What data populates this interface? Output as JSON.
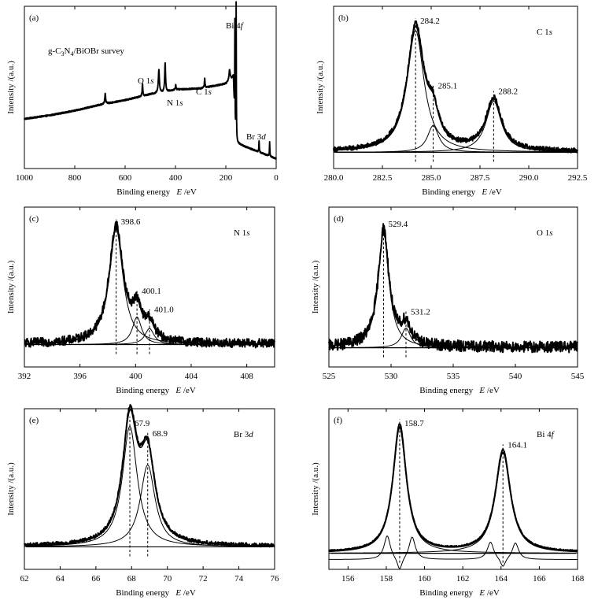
{
  "chart_data": [
    {
      "id": "a",
      "type": "line",
      "panel_label": "(a)",
      "title": "g-C3N4/BiOBr survey",
      "xlabel": "Binding energy",
      "xvar": "E",
      "xunit": "/eV",
      "ylabel": "Intensity /(a.u.)",
      "xlim": [
        1000,
        0
      ],
      "reversed": true,
      "xticks": [
        1000,
        800,
        600,
        400,
        200,
        0
      ],
      "grid": false,
      "annotations": [
        {
          "label": "O 1s",
          "x": 531
        },
        {
          "label": "N 1s",
          "x": 399
        },
        {
          "label": "C 1s",
          "x": 284
        },
        {
          "label": "Bi 4f",
          "x": 159
        },
        {
          "label": "Br 3d",
          "x": 68
        }
      ],
      "baseline": [
        [
          1000,
          0.37
        ],
        [
          900,
          0.4
        ],
        [
          800,
          0.44
        ],
        [
          700,
          0.49
        ],
        [
          600,
          0.53
        ],
        [
          500,
          0.58
        ],
        [
          440,
          0.6
        ],
        [
          400,
          0.62
        ],
        [
          300,
          0.63
        ],
        [
          200,
          0.67
        ],
        [
          170,
          0.72
        ],
        [
          163,
          0.17
        ],
        [
          120,
          0.13
        ],
        [
          60,
          0.08
        ],
        [
          0,
          0.03
        ]
      ],
      "peaks": [
        {
          "x": 679,
          "h": 0.09,
          "w": 4
        },
        {
          "x": 531,
          "h": 0.11,
          "w": 3
        },
        {
          "x": 466,
          "h": 0.2,
          "w": 5
        },
        {
          "x": 441,
          "h": 0.25,
          "w": 4
        },
        {
          "x": 399,
          "h": 0.04,
          "w": 3
        },
        {
          "x": 284,
          "h": 0.08,
          "w": 3
        },
        {
          "x": 185,
          "h": 0.09,
          "w": 6
        },
        {
          "x": 164,
          "h": 0.95,
          "w": 1.6
        },
        {
          "x": 159,
          "h": 1.18,
          "w": 1.6
        },
        {
          "x": 68,
          "h": 0.1,
          "w": 2
        },
        {
          "x": 26,
          "h": 0.12,
          "w": 2
        }
      ]
    },
    {
      "id": "b",
      "type": "line",
      "panel_label": "(b)",
      "element_label": "C 1s",
      "xlabel": "Binding energy",
      "xvar": "E",
      "xunit": "/eV",
      "ylabel": "Intensity /(a.u.)",
      "xlim": [
        280.0,
        292.5
      ],
      "xticks": [
        280.0,
        282.5,
        285.0,
        287.5,
        290.0,
        292.5
      ],
      "xtick_labels": [
        "280.0",
        "282.5",
        "285.0",
        "287.5",
        "290.0",
        "292.5"
      ],
      "grid": false,
      "peak_labels": [
        {
          "label": "284.2",
          "x": 284.2
        },
        {
          "label": "285.1",
          "x": 285.1
        },
        {
          "label": "288.2",
          "x": 288.2
        }
      ],
      "components": [
        {
          "center": 284.2,
          "height": 1.0,
          "fwhm": 1.05
        },
        {
          "center": 285.1,
          "height": 0.22,
          "fwhm": 0.7
        },
        {
          "center": 288.2,
          "height": 0.42,
          "fwhm": 0.95
        }
      ],
      "noise": 0.02
    },
    {
      "id": "c",
      "type": "line",
      "panel_label": "(c)",
      "element_label": "N 1s",
      "xlabel": "Binding energy",
      "xvar": "E",
      "xunit": "/eV",
      "ylabel": "Intensity /(a.u.)",
      "xlim": [
        392,
        410
      ],
      "xticks": [
        392,
        396,
        400,
        404,
        408
      ],
      "grid": false,
      "peak_labels": [
        {
          "label": "398.6",
          "x": 398.6
        },
        {
          "label": "400.1",
          "x": 400.1
        },
        {
          "label": "401.0",
          "x": 401.0
        }
      ],
      "components": [
        {
          "center": 398.6,
          "height": 1.0,
          "fwhm": 1.2
        },
        {
          "center": 400.1,
          "height": 0.24,
          "fwhm": 0.8
        },
        {
          "center": 401.0,
          "height": 0.14,
          "fwhm": 0.8
        }
      ],
      "noise": 0.04
    },
    {
      "id": "d",
      "type": "line",
      "panel_label": "(d)",
      "element_label": "O 1s",
      "xlabel": "Binding energy",
      "xvar": "E",
      "xunit": "/eV",
      "ylabel": "Intensity /(a.u.)",
      "xlim": [
        525,
        545
      ],
      "xticks": [
        525,
        530,
        535,
        540,
        545
      ],
      "grid": false,
      "peak_labels": [
        {
          "label": "529.4",
          "x": 529.4
        },
        {
          "label": "531.2",
          "x": 531.2
        }
      ],
      "components": [
        {
          "center": 529.4,
          "height": 1.0,
          "fwhm": 1.05
        },
        {
          "center": 531.2,
          "height": 0.17,
          "fwhm": 0.9
        }
      ],
      "noise": 0.05
    },
    {
      "id": "e",
      "type": "line",
      "panel_label": "(e)",
      "element_label": "Br 3d",
      "xlabel": "Binding energy",
      "xvar": "E",
      "xunit": "/eV",
      "ylabel": "Intensity /(a.u.)",
      "xlim": [
        62,
        76
      ],
      "xticks": [
        62,
        64,
        66,
        68,
        70,
        72,
        74,
        76
      ],
      "grid": false,
      "peak_labels": [
        {
          "label": "67.9",
          "x": 67.9
        },
        {
          "label": "68.9",
          "x": 68.9
        }
      ],
      "components": [
        {
          "center": 67.9,
          "height": 1.0,
          "fwhm": 1.0
        },
        {
          "center": 68.9,
          "height": 0.68,
          "fwhm": 1.0
        }
      ],
      "noise": 0.015
    },
    {
      "id": "f",
      "type": "line",
      "panel_label": "(f)",
      "element_label": "Bi 4f",
      "xlabel": "Binding energy",
      "xvar": "E",
      "xunit": "/eV",
      "ylabel": "Intensity /(a.u.)",
      "xlim": [
        155,
        168
      ],
      "xticks": [
        156,
        158,
        160,
        162,
        164,
        166,
        168
      ],
      "grid": false,
      "peak_labels": [
        {
          "label": "158.7",
          "x": 158.7
        },
        {
          "label": "164.1",
          "x": 164.1
        }
      ],
      "components": [
        {
          "center": 158.7,
          "height": 1.0,
          "fwhm": 0.85
        },
        {
          "center": 164.1,
          "height": 0.8,
          "fwhm": 0.95
        }
      ],
      "sub_doublets": [
        {
          "center": 158.7,
          "split": 0.65,
          "height": 0.19,
          "fwhm": 0.4
        },
        {
          "center": 164.1,
          "split": 0.65,
          "height": 0.14,
          "fwhm": 0.4
        }
      ],
      "noise": 0.005
    }
  ]
}
